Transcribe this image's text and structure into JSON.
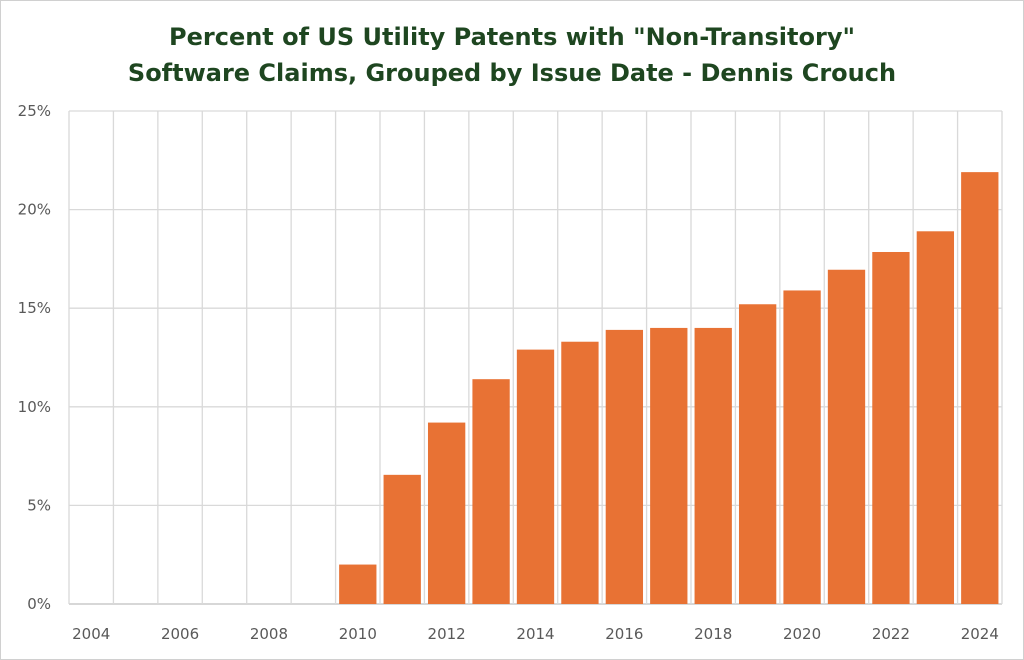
{
  "chart_data": {
    "type": "bar",
    "title_lines": [
      "Percent of US Utility Patents with \"Non-Transitory\"",
      "Software Claims, Grouped by Issue Date - Dennis Crouch"
    ],
    "xlabel": "",
    "ylabel": "",
    "categories": [
      2004,
      2005,
      2006,
      2007,
      2008,
      2009,
      2010,
      2011,
      2012,
      2013,
      2014,
      2015,
      2016,
      2017,
      2018,
      2019,
      2020,
      2021,
      2022,
      2023,
      2024
    ],
    "x_tick_labels": [
      "2004",
      "2006",
      "2008",
      "2010",
      "2012",
      "2014",
      "2016",
      "2018",
      "2020",
      "2022",
      "2024"
    ],
    "values": [
      0,
      0,
      0,
      0,
      0,
      0,
      2.0,
      6.55,
      9.2,
      11.4,
      12.9,
      13.3,
      13.9,
      14.0,
      14.0,
      15.2,
      15.9,
      16.95,
      17.85,
      18.9,
      21.9
    ],
    "unit": "%",
    "ylim": [
      0,
      25
    ],
    "y_tick_labels": [
      "0%",
      "5%",
      "10%",
      "15%",
      "20%",
      "25%"
    ],
    "y_ticks": [
      0,
      5,
      10,
      15,
      20,
      25
    ],
    "grid": true,
    "bar_color": "#e87234",
    "title_color": "#1e4620"
  }
}
